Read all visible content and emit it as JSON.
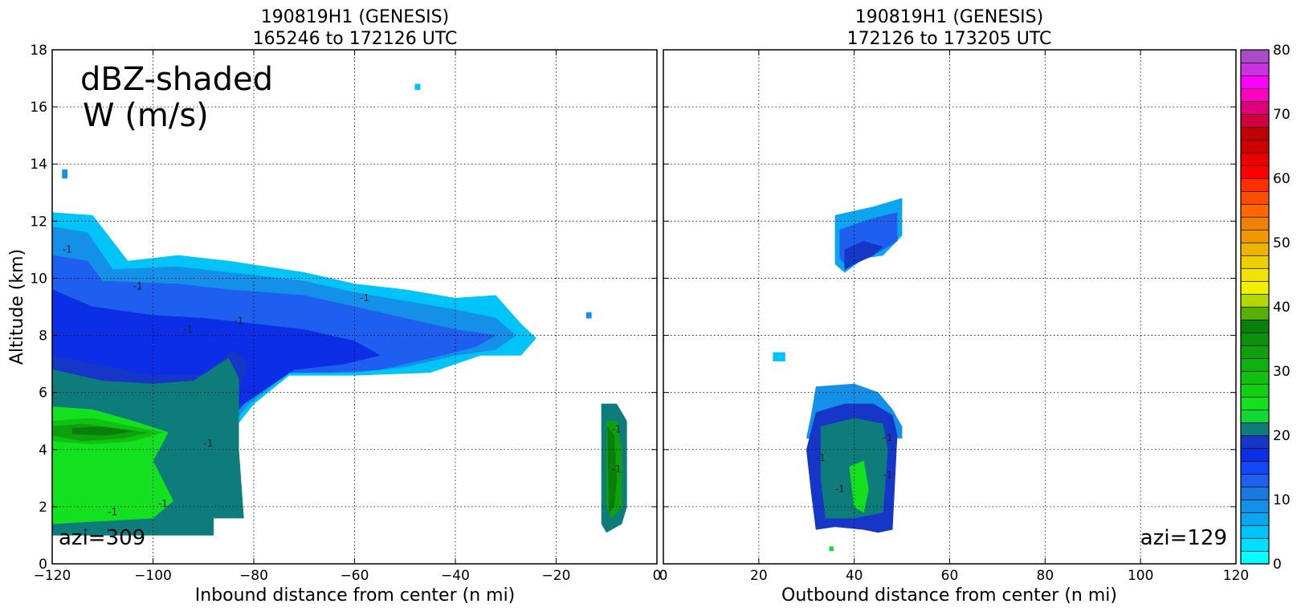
{
  "chart_data": [
    {
      "type": "heatmap",
      "title": [
        "190819H1 (GENESIS)",
        "165246 to 172126 UTC"
      ],
      "xlabel": "Inbound distance from center (n mi)",
      "ylabel": "Altitude (km)",
      "xlim": [
        -120,
        0
      ],
      "ylim": [
        0,
        18
      ],
      "xticks": [
        -120,
        -100,
        -80,
        -60,
        -40,
        -20,
        0
      ],
      "yticks": [
        0,
        2,
        4,
        6,
        8,
        10,
        12,
        14,
        16,
        18
      ],
      "grid": true,
      "annotations": [
        "dBZ-shaded",
        "W (m/s)",
        "azi=309"
      ],
      "contour_label": "-1",
      "fields": [
        {
          "dbz": 5,
          "poly": [
            [
              -120,
              12.3
            ],
            [
              -112,
              12.2
            ],
            [
              -105,
              10.6
            ],
            [
              -95,
              10.8
            ],
            [
              -85,
              10.6
            ],
            [
              -70,
              10.2
            ],
            [
              -60,
              9.8
            ],
            [
              -50,
              9.6
            ],
            [
              -40,
              9.3
            ],
            [
              -32,
              9.4
            ],
            [
              -27,
              8.4
            ],
            [
              -24,
              7.9
            ],
            [
              -27,
              7.3
            ],
            [
              -35,
              7.3
            ],
            [
              -45,
              6.7
            ],
            [
              -60,
              6.6
            ],
            [
              -73,
              6.6
            ],
            [
              -80,
              5.6
            ],
            [
              -85,
              4.5
            ],
            [
              -90,
              3.8
            ],
            [
              -95,
              3.0
            ],
            [
              -100,
              2.0
            ],
            [
              -120,
              1.0
            ]
          ]
        },
        {
          "dbz": 9,
          "poly": [
            [
              -120,
              11.8
            ],
            [
              -113,
              11.6
            ],
            [
              -108,
              10.3
            ],
            [
              -95,
              10.4
            ],
            [
              -85,
              10.2
            ],
            [
              -70,
              9.9
            ],
            [
              -60,
              9.5
            ],
            [
              -50,
              9.2
            ],
            [
              -40,
              8.9
            ],
            [
              -32,
              8.6
            ],
            [
              -28,
              8.0
            ],
            [
              -32,
              7.5
            ],
            [
              -40,
              7.3
            ],
            [
              -50,
              6.9
            ],
            [
              -60,
              6.7
            ],
            [
              -73,
              6.7
            ],
            [
              -81,
              5.6
            ],
            [
              -86,
              4.5
            ],
            [
              -95,
              3.0
            ],
            [
              -100,
              2.0
            ],
            [
              -120,
              1.0
            ]
          ]
        },
        {
          "dbz": 13,
          "poly": [
            [
              -120,
              10.8
            ],
            [
              -113,
              10.6
            ],
            [
              -110,
              9.9
            ],
            [
              -95,
              9.8
            ],
            [
              -85,
              9.6
            ],
            [
              -70,
              9.4
            ],
            [
              -60,
              9.0
            ],
            [
              -50,
              8.6
            ],
            [
              -40,
              8.2
            ],
            [
              -32,
              8.0
            ],
            [
              -36,
              7.6
            ],
            [
              -45,
              7.2
            ],
            [
              -55,
              6.8
            ],
            [
              -65,
              6.7
            ],
            [
              -74,
              6.7
            ],
            [
              -82,
              5.6
            ],
            [
              -87,
              4.5
            ],
            [
              -95,
              3.0
            ],
            [
              -100,
              2.0
            ],
            [
              -120,
              1.0
            ]
          ]
        },
        {
          "dbz": 17,
          "poly": [
            [
              -120,
              9.6
            ],
            [
              -112,
              9.0
            ],
            [
              -100,
              8.7
            ],
            [
              -90,
              8.6
            ],
            [
              -80,
              8.4
            ],
            [
              -70,
              8.2
            ],
            [
              -60,
              7.8
            ],
            [
              -55,
              7.3
            ],
            [
              -62,
              7.0
            ],
            [
              -72,
              6.8
            ],
            [
              -82,
              5.6
            ],
            [
              -88,
              4.5
            ],
            [
              -95,
              3.0
            ],
            [
              -100,
              2.0
            ],
            [
              -120,
              1.0
            ]
          ]
        },
        {
          "dbz": 19,
          "poly": [
            [
              -120,
              7.3
            ],
            [
              -112,
              7.0
            ],
            [
              -100,
              6.6
            ],
            [
              -90,
              6.6
            ],
            [
              -84,
              7.5
            ],
            [
              -81,
              7.0
            ],
            [
              -84,
              5.5
            ],
            [
              -88,
              4.5
            ],
            [
              -95,
              3.0
            ],
            [
              -100,
              2.0
            ],
            [
              -120,
              1.0
            ]
          ]
        },
        {
          "dbz": 21,
          "poly": [
            [
              -120,
              6.8
            ],
            [
              -110,
              6.4
            ],
            [
              -100,
              6.3
            ],
            [
              -92,
              6.4
            ],
            [
              -85,
              7.2
            ],
            [
              -83,
              6.5
            ],
            [
              -83,
              4.0
            ],
            [
              -82,
              1.6
            ],
            [
              -88,
              1.6
            ],
            [
              -88,
              1.0
            ],
            [
              -120,
              1.0
            ]
          ]
        },
        {
          "dbz": 25,
          "poly": [
            [
              -120,
              5.5
            ],
            [
              -112,
              5.4
            ],
            [
              -104,
              5.0
            ],
            [
              -97,
              4.6
            ],
            [
              -100,
              3.6
            ],
            [
              -96,
              2.2
            ],
            [
              -100,
              1.6
            ],
            [
              -120,
              1.4
            ]
          ]
        },
        {
          "dbz": 29,
          "poly": [
            [
              -120,
              5.0
            ],
            [
              -112,
              5.1
            ],
            [
              -104,
              4.8
            ],
            [
              -98,
              4.6
            ],
            [
              -104,
              4.3
            ],
            [
              -112,
              4.2
            ],
            [
              -120,
              4.3
            ]
          ]
        },
        {
          "dbz": 33,
          "poly": [
            [
              -120,
              4.8
            ],
            [
              -114,
              4.9
            ],
            [
              -106,
              4.7
            ],
            [
              -101,
              4.6
            ],
            [
              -106,
              4.4
            ],
            [
              -114,
              4.3
            ],
            [
              -120,
              4.5
            ]
          ]
        },
        {
          "dbz": 37,
          "poly": [
            [
              -116,
              4.75
            ],
            [
              -110,
              4.8
            ],
            [
              -104,
              4.65
            ],
            [
              -109,
              4.5
            ],
            [
              -116,
              4.55
            ]
          ]
        },
        {
          "dbz": 9,
          "poly": [
            [
              -118,
              13.8
            ],
            [
              -117,
              13.8
            ],
            [
              -117,
              13.5
            ],
            [
              -118,
              13.5
            ]
          ]
        },
        {
          "dbz": 5,
          "poly": [
            [
              -48,
              16.8
            ],
            [
              -47,
              16.8
            ],
            [
              -47,
              16.6
            ],
            [
              -48,
              16.6
            ]
          ]
        },
        {
          "dbz": 9,
          "poly": [
            [
              -14,
              8.8
            ],
            [
              -13,
              8.8
            ],
            [
              -13,
              8.6
            ],
            [
              -14,
              8.6
            ]
          ]
        },
        {
          "dbz": 21,
          "poly": [
            [
              -11,
              5.6
            ],
            [
              -8,
              5.6
            ],
            [
              -6,
              5.0
            ],
            [
              -6,
              2.0
            ],
            [
              -7,
              1.4
            ],
            [
              -10,
              1.1
            ],
            [
              -11,
              1.4
            ]
          ]
        },
        {
          "dbz": 33,
          "poly": [
            [
              -10,
              5.0
            ],
            [
              -8,
              5.0
            ],
            [
              -7,
              4.0
            ],
            [
              -7,
              2.0
            ],
            [
              -9,
              1.6
            ],
            [
              -10,
              2.0
            ]
          ]
        },
        {
          "dbz": 37,
          "poly": [
            [
              -9.8,
              4.8
            ],
            [
              -8.5,
              4.5
            ],
            [
              -8,
              3.0
            ],
            [
              -8.5,
              2.0
            ],
            [
              -9.5,
              1.8
            ]
          ]
        }
      ]
    },
    {
      "type": "heatmap",
      "title": [
        "190819H1 (GENESIS)",
        "172126 to 173205 UTC"
      ],
      "xlabel": "Outbound distance from center (n mi)",
      "ylabel": "",
      "xlim": [
        0,
        120
      ],
      "ylim": [
        0,
        18
      ],
      "xticks": [
        0,
        20,
        40,
        60,
        80,
        100,
        120
      ],
      "yticks": [
        0,
        2,
        4,
        6,
        8,
        10,
        12,
        14,
        16,
        18
      ],
      "grid": true,
      "annotations": [
        "azi=129"
      ],
      "contour_label": "-1",
      "fields": [
        {
          "dbz": 7,
          "poly": [
            [
              36,
              12.2
            ],
            [
              44,
              12.5
            ],
            [
              50,
              12.8
            ],
            [
              50,
              11.5
            ],
            [
              46,
              10.8
            ],
            [
              42,
              10.7
            ],
            [
              38,
              10.2
            ],
            [
              36,
              10.5
            ]
          ]
        },
        {
          "dbz": 13,
          "poly": [
            [
              37,
              11.7
            ],
            [
              44,
              12.1
            ],
            [
              49,
              12.3
            ],
            [
              49,
              11.3
            ],
            [
              45,
              10.9
            ],
            [
              41,
              10.8
            ],
            [
              38,
              10.5
            ],
            [
              37,
              10.7
            ]
          ]
        },
        {
          "dbz": 19,
          "poly": [
            [
              38,
              11.0
            ],
            [
              42,
              11.3
            ],
            [
              46,
              11.1
            ],
            [
              44,
              10.8
            ],
            [
              40,
              10.5
            ],
            [
              38,
              10.3
            ]
          ]
        },
        {
          "dbz": 5,
          "poly": [
            [
              23,
              7.4
            ],
            [
              25.5,
              7.4
            ],
            [
              25.5,
              7.1
            ],
            [
              23,
              7.1
            ]
          ]
        },
        {
          "dbz": 9,
          "poly": [
            [
              32,
              6.2
            ],
            [
              40,
              6.3
            ],
            [
              45,
              6.0
            ],
            [
              48,
              5.4
            ],
            [
              50,
              4.8
            ],
            [
              50,
              4.4
            ],
            [
              30,
              4.4
            ],
            [
              31,
              5.2
            ]
          ]
        },
        {
          "dbz": 19,
          "poly": [
            [
              32,
              5.3
            ],
            [
              38,
              5.6
            ],
            [
              44,
              5.6
            ],
            [
              48,
              5.2
            ],
            [
              49,
              4.5
            ],
            [
              48,
              1.2
            ],
            [
              45,
              1.1
            ],
            [
              42,
              1.2
            ],
            [
              36,
              1.3
            ],
            [
              32,
              1.2
            ],
            [
              31,
              2.5
            ],
            [
              30,
              4.0
            ]
          ]
        },
        {
          "dbz": 21,
          "poly": [
            [
              33,
              4.8
            ],
            [
              40,
              5.1
            ],
            [
              46,
              4.9
            ],
            [
              47,
              4.0
            ],
            [
              46,
              1.8
            ],
            [
              40,
              1.6
            ],
            [
              34,
              1.6
            ],
            [
              33,
              3.0
            ]
          ]
        },
        {
          "dbz": 25,
          "poly": [
            [
              39,
              3.4
            ],
            [
              42,
              3.6
            ],
            [
              43,
              2.6
            ],
            [
              42,
              1.8
            ],
            [
              40,
              2.0
            ]
          ]
        },
        {
          "dbz": 23,
          "poly": [
            [
              34.8,
              0.6
            ],
            [
              35.6,
              0.6
            ],
            [
              35.6,
              0.45
            ],
            [
              34.8,
              0.45
            ]
          ]
        }
      ]
    }
  ],
  "colorbar": {
    "min": 0,
    "max": 80,
    "step": 2,
    "ticks": [
      0,
      10,
      20,
      30,
      40,
      50,
      60,
      70,
      80
    ],
    "colors": [
      "#00ffff",
      "#00dfff",
      "#00c3f7",
      "#0aa7f0",
      "#1490e8",
      "#1c78e0",
      "#1f5ff0",
      "#1246f8",
      "#0b2ee6",
      "#1636c8",
      "#0f7c7c",
      "#10d835",
      "#13e01e",
      "#14d014",
      "#11c011",
      "#0fb00f",
      "#0ea00e",
      "#0c8f0c",
      "#0b7f0b",
      "#58b000",
      "#b2d800",
      "#f2f000",
      "#f2e200",
      "#eed000",
      "#eab400",
      "#f09800",
      "#f08000",
      "#ff6800",
      "#ff4e00",
      "#ff3000",
      "#ff0000",
      "#ea0000",
      "#d00000",
      "#c00000",
      "#d00040",
      "#e0007a",
      "#ff00c0",
      "#ff00ff",
      "#cc33e0",
      "#aa4cc8",
      "#8a45a8",
      "#6a2f7a",
      "#3a1a4a",
      "#000000"
    ]
  }
}
